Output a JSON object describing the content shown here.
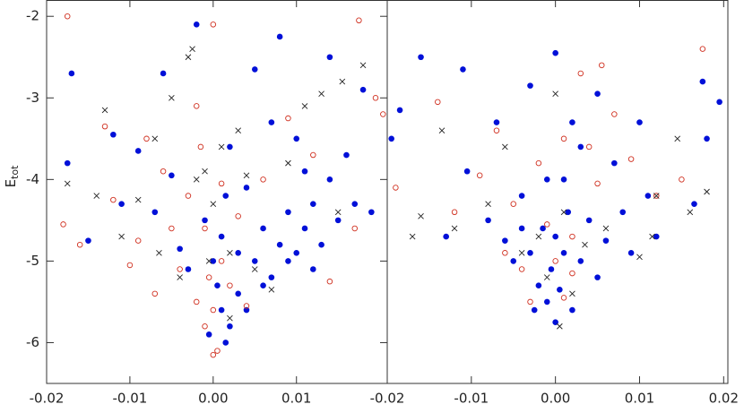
{
  "chart_data": [
    {
      "type": "scatter",
      "y_label": "E",
      "y_label_sub": "tot",
      "xlim": [
        -0.02,
        0.0209
      ],
      "ylim": [
        -6.5,
        -1.8
      ],
      "xticks": [
        {
          "value": -0.02,
          "label": "-0.02"
        },
        {
          "value": -0.01,
          "label": "-0.01"
        },
        {
          "value": 0,
          "label": "0.00"
        },
        {
          "value": 0.01,
          "label": "0.01"
        }
      ],
      "yticks": [
        -6,
        -5,
        -4,
        -3,
        -2
      ],
      "series": [
        {
          "marker": "filled",
          "color": "#0010d8",
          "x": [
            -0.017,
            -0.0175,
            -0.015,
            -0.012,
            -0.011,
            -0.009,
            -0.007,
            -0.006,
            -0.005,
            -0.004,
            -0.003,
            -0.002,
            -0.001,
            0.0,
            0.0005,
            0.001,
            0.001,
            0.0015,
            0.002,
            0.002,
            0.003,
            0.003,
            0.004,
            0.005,
            0.005,
            0.006,
            0.007,
            0.007,
            0.008,
            0.008,
            0.009,
            0.01,
            0.01,
            0.011,
            0.012,
            0.013,
            0.014,
            0.014,
            0.015,
            0.016,
            0.017,
            0.018,
            0.019,
            -0.0005,
            0.0015,
            0.004,
            0.006,
            0.009,
            0.011,
            0.012
          ],
          "values": [
            -2.7,
            -3.8,
            -4.75,
            -3.45,
            -4.3,
            -3.65,
            -4.4,
            -2.7,
            -3.95,
            -4.85,
            -5.1,
            -2.1,
            -4.5,
            -5.0,
            -5.3,
            -4.7,
            -5.6,
            -4.2,
            -5.8,
            -3.6,
            -4.9,
            -5.4,
            -4.1,
            -5.0,
            -2.65,
            -4.6,
            -5.2,
            -3.3,
            -4.8,
            -2.25,
            -4.4,
            -4.9,
            -3.5,
            -4.6,
            -4.3,
            -4.8,
            -2.5,
            -4.0,
            -4.5,
            -3.7,
            -4.3,
            -2.9,
            -4.4,
            -5.9,
            -6.0,
            -5.6,
            -5.3,
            -5.0,
            -3.9,
            -5.1
          ]
        },
        {
          "marker": "open",
          "color": "#d03020",
          "x": [
            -0.018,
            -0.0175,
            -0.016,
            -0.013,
            -0.012,
            -0.01,
            -0.009,
            -0.007,
            -0.006,
            -0.005,
            -0.004,
            -0.003,
            -0.002,
            -0.001,
            -0.0005,
            0.0,
            0.0,
            0.0005,
            0.001,
            -0.001,
            0.0,
            -0.0015,
            0.002,
            0.003,
            0.004,
            0.006,
            0.009,
            0.012,
            0.014,
            0.017,
            0.0195,
            0.0175,
            -0.002,
            0.001,
            -0.008
          ],
          "values": [
            -4.55,
            -2.0,
            -4.8,
            -3.35,
            -4.25,
            -5.05,
            -4.75,
            -5.4,
            -3.9,
            -4.6,
            -5.1,
            -4.2,
            -5.5,
            -5.8,
            -5.2,
            -6.15,
            -5.6,
            -6.1,
            -5.0,
            -4.6,
            -2.1,
            -3.6,
            -5.3,
            -4.45,
            -5.55,
            -4.0,
            -3.25,
            -3.7,
            -5.25,
            -4.6,
            -3.0,
            -2.05,
            -3.1,
            -4.05,
            -3.5
          ]
        },
        {
          "marker": "cross",
          "color": "#222222",
          "x": [
            -0.0175,
            -0.014,
            -0.013,
            -0.011,
            -0.009,
            -0.007,
            -0.0065,
            -0.005,
            -0.004,
            -0.003,
            -0.0025,
            -0.002,
            -0.001,
            -0.0005,
            0.0,
            0.001,
            0.002,
            0.003,
            0.004,
            0.005,
            0.007,
            0.009,
            0.011,
            0.013,
            0.015,
            0.018,
            0.0155,
            0.002
          ],
          "values": [
            -4.05,
            -4.2,
            -3.15,
            -4.7,
            -4.25,
            -3.5,
            -4.9,
            -3.0,
            -5.2,
            -2.5,
            -2.4,
            -4.0,
            -3.9,
            -5.0,
            -4.3,
            -3.6,
            -4.9,
            -3.4,
            -3.95,
            -5.1,
            -5.35,
            -3.8,
            -3.1,
            -2.95,
            -4.4,
            -2.6,
            -2.8,
            -5.7
          ]
        }
      ]
    },
    {
      "type": "scatter",
      "xlim": [
        -0.02,
        0.0205
      ],
      "ylim": [
        -6.5,
        -1.8
      ],
      "xticks": [
        {
          "value": -0.02,
          "label": "-0.02"
        },
        {
          "value": -0.01,
          "label": "-0.01"
        },
        {
          "value": 0,
          "label": "0.00"
        },
        {
          "value": 0.01,
          "label": "0.01"
        },
        {
          "value": 0.02,
          "label": "0.02"
        }
      ],
      "series": [
        {
          "marker": "filled",
          "color": "#0010d8",
          "x": [
            -0.0195,
            -0.0185,
            -0.016,
            -0.013,
            -0.011,
            -0.0105,
            -0.008,
            -0.007,
            -0.006,
            -0.005,
            -0.004,
            -0.003,
            -0.003,
            -0.002,
            -0.0015,
            -0.001,
            -0.001,
            -0.0005,
            0.0,
            0.0,
            0.0,
            0.0005,
            0.001,
            0.0015,
            0.002,
            0.002,
            0.003,
            0.004,
            0.005,
            0.005,
            0.006,
            0.007,
            0.008,
            0.009,
            0.01,
            0.011,
            0.012,
            0.0175,
            0.018,
            0.0165,
            0.0195,
            -0.0025,
            0.001,
            -0.004,
            0.003
          ],
          "values": [
            -3.5,
            -3.15,
            -2.5,
            -4.7,
            -2.65,
            -3.9,
            -4.5,
            -3.3,
            -4.75,
            -5.0,
            -4.2,
            -2.85,
            -4.9,
            -5.3,
            -4.6,
            -5.5,
            -4.0,
            -5.1,
            -2.45,
            -4.7,
            -5.75,
            -5.35,
            -4.9,
            -4.4,
            -5.6,
            -3.3,
            -5.0,
            -4.5,
            -2.95,
            -5.2,
            -4.75,
            -3.8,
            -4.4,
            -4.9,
            -3.3,
            -4.2,
            -4.7,
            -2.8,
            -3.5,
            -4.3,
            -3.05,
            -5.6,
            -4.0,
            -4.6,
            -3.6
          ]
        },
        {
          "marker": "open",
          "color": "#d03020",
          "x": [
            -0.0205,
            -0.019,
            -0.014,
            -0.012,
            -0.009,
            -0.007,
            -0.005,
            -0.004,
            -0.003,
            -0.002,
            -0.001,
            0.0,
            0.001,
            0.001,
            0.002,
            0.003,
            0.004,
            0.005,
            0.0055,
            0.007,
            0.009,
            0.012,
            0.015,
            0.0175,
            -0.006,
            0.002
          ],
          "values": [
            -3.2,
            -4.1,
            -3.05,
            -4.4,
            -3.95,
            -3.4,
            -4.3,
            -5.1,
            -5.5,
            -3.8,
            -4.55,
            -5.0,
            -3.5,
            -5.45,
            -4.7,
            -2.7,
            -3.6,
            -4.05,
            -2.6,
            -3.2,
            -3.75,
            -4.2,
            -4.0,
            -2.4,
            -4.9,
            -5.15
          ]
        },
        {
          "marker": "cross",
          "color": "#222222",
          "x": [
            -0.017,
            -0.016,
            -0.0135,
            -0.012,
            -0.008,
            -0.006,
            -0.004,
            -0.002,
            -0.001,
            0.0,
            0.0005,
            0.001,
            0.002,
            0.0035,
            0.006,
            0.01,
            0.0115,
            0.012,
            0.0145,
            0.018,
            0.016
          ],
          "values": [
            -4.7,
            -4.45,
            -3.4,
            -4.6,
            -4.3,
            -3.6,
            -4.9,
            -4.7,
            -5.2,
            -2.95,
            -5.8,
            -4.4,
            -5.4,
            -4.8,
            -4.6,
            -4.95,
            -4.7,
            -4.2,
            -3.5,
            -4.15,
            -4.4
          ]
        }
      ]
    }
  ]
}
